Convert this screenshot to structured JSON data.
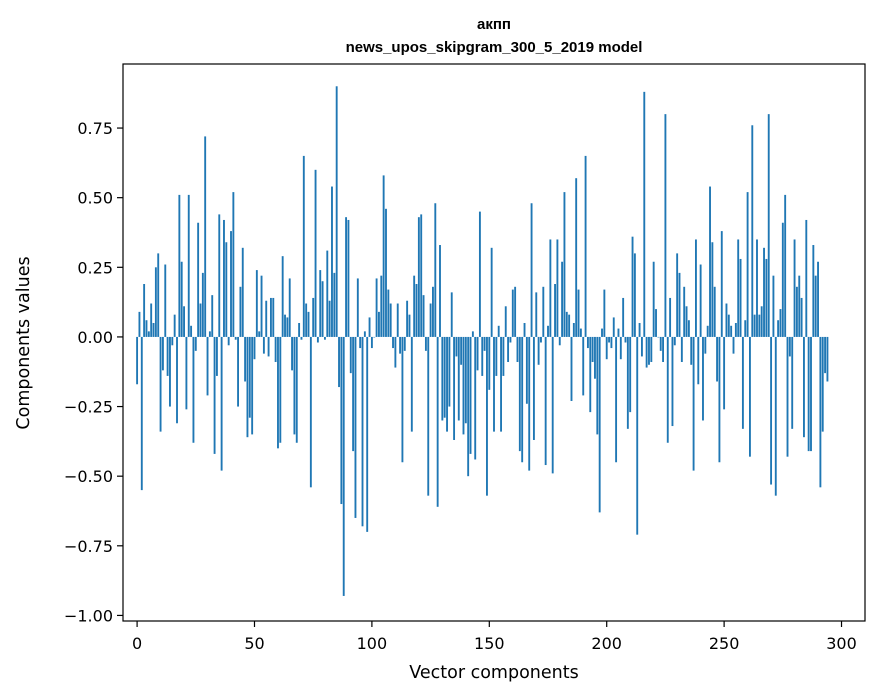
{
  "chart_data": {
    "type": "bar",
    "title_lines": [
      "акпп",
      "news_upos_skipgram_300_5_2019 model"
    ],
    "xlabel": "Vector components",
    "ylabel": "Components values",
    "xlim": [
      -6,
      310
    ],
    "ylim": [
      -1.02,
      0.98
    ],
    "x_ticks": [
      0,
      50,
      100,
      150,
      200,
      250,
      300
    ],
    "x_tick_labels": [
      "0",
      "50",
      "100",
      "150",
      "200",
      "250",
      "300"
    ],
    "y_ticks": [
      0.75,
      0.5,
      0.25,
      0.0,
      -0.25,
      -0.5,
      -0.75,
      -1.0
    ],
    "y_tick_labels": [
      "0.75",
      "0.50",
      "0.25",
      "0.00",
      "−0.25",
      "−0.50",
      "−0.75",
      "−1.00"
    ],
    "bar_color": "#1f77b4",
    "grid": false,
    "legend": "none",
    "values": [
      -0.17,
      0.09,
      -0.55,
      0.19,
      0.06,
      0.02,
      0.12,
      0.05,
      0.25,
      0.3,
      -0.34,
      -0.12,
      0.26,
      -0.14,
      -0.25,
      -0.03,
      0.08,
      -0.31,
      0.51,
      0.27,
      0.11,
      -0.26,
      0.51,
      0.04,
      -0.38,
      -0.05,
      0.41,
      0.12,
      0.23,
      0.72,
      -0.21,
      0.02,
      0.15,
      -0.42,
      -0.14,
      0.44,
      -0.48,
      0.42,
      0.34,
      -0.03,
      0.38,
      0.52,
      -0.01,
      -0.25,
      0.18,
      0.32,
      -0.16,
      -0.36,
      -0.29,
      -0.35,
      -0.08,
      0.24,
      0.02,
      0.22,
      -0.06,
      0.13,
      -0.07,
      0.14,
      0.14,
      -0.09,
      -0.4,
      -0.38,
      0.29,
      0.08,
      0.07,
      0.21,
      -0.12,
      -0.35,
      -0.38,
      0.05,
      -0.01,
      0.65,
      0.12,
      0.09,
      -0.54,
      0.14,
      0.6,
      -0.02,
      0.24,
      0.2,
      -0.01,
      0.31,
      0.13,
      0.54,
      0.23,
      0.9,
      -0.18,
      -0.6,
      -0.93,
      0.43,
      0.42,
      -0.13,
      -0.41,
      -0.65,
      0.21,
      -0.04,
      -0.68,
      0.02,
      -0.7,
      0.07,
      -0.04,
      0.0,
      0.21,
      0.09,
      0.22,
      0.58,
      0.46,
      0.17,
      0.12,
      -0.04,
      -0.11,
      0.12,
      -0.06,
      -0.45,
      -0.05,
      0.13,
      0.08,
      -0.34,
      0.22,
      0.19,
      0.43,
      0.44,
      0.15,
      -0.05,
      -0.57,
      0.12,
      0.18,
      0.48,
      -0.61,
      0.33,
      -0.3,
      -0.29,
      -0.34,
      -0.25,
      0.16,
      -0.37,
      -0.07,
      -0.3,
      -0.1,
      -0.35,
      -0.31,
      -0.5,
      -0.42,
      0.02,
      -0.44,
      -0.12,
      0.45,
      -0.14,
      -0.05,
      -0.57,
      -0.19,
      0.32,
      -0.34,
      -0.14,
      0.04,
      -0.34,
      -0.14,
      0.11,
      -0.09,
      -0.02,
      0.17,
      0.18,
      -0.09,
      -0.41,
      -0.45,
      0.05,
      -0.24,
      -0.48,
      0.48,
      -0.37,
      0.16,
      -0.1,
      -0.02,
      0.18,
      -0.46,
      0.04,
      0.35,
      -0.49,
      0.19,
      0.35,
      -0.03,
      0.27,
      0.52,
      0.09,
      0.08,
      -0.23,
      0.05,
      0.57,
      0.17,
      0.03,
      -0.21,
      0.65,
      -0.04,
      -0.27,
      -0.09,
      -0.15,
      -0.35,
      -0.63,
      0.03,
      0.17,
      -0.08,
      -0.02,
      -0.04,
      0.07,
      -0.45,
      0.03,
      -0.08,
      0.14,
      -0.02,
      -0.33,
      -0.27,
      0.36,
      0.3,
      -0.71,
      0.05,
      -0.07,
      0.88,
      -0.11,
      -0.1,
      -0.09,
      0.27,
      0.1,
      0.0,
      -0.05,
      -0.09,
      0.8,
      -0.38,
      0.14,
      -0.32,
      -0.03,
      0.3,
      0.23,
      -0.09,
      0.18,
      0.11,
      0.06,
      -0.1,
      -0.48,
      0.35,
      -0.17,
      0.26,
      -0.3,
      -0.06,
      0.04,
      0.54,
      0.34,
      0.18,
      -0.16,
      -0.45,
      0.38,
      -0.26,
      0.12,
      0.08,
      0.04,
      -0.06,
      0.05,
      0.35,
      0.28,
      -0.33,
      0.06,
      0.52,
      -0.43,
      0.76,
      0.08,
      0.35,
      0.08,
      0.11,
      0.32,
      0.28,
      0.8,
      -0.53,
      0.22,
      -0.57,
      0.06,
      0.1,
      0.41,
      0.51,
      -0.43,
      -0.07,
      -0.33,
      0.35,
      0.18,
      0.22,
      0.14,
      -0.36,
      0.42,
      -0.41,
      -0.41,
      0.33,
      0.22,
      0.27,
      -0.54,
      -0.34,
      -0.13,
      -0.16
    ]
  }
}
